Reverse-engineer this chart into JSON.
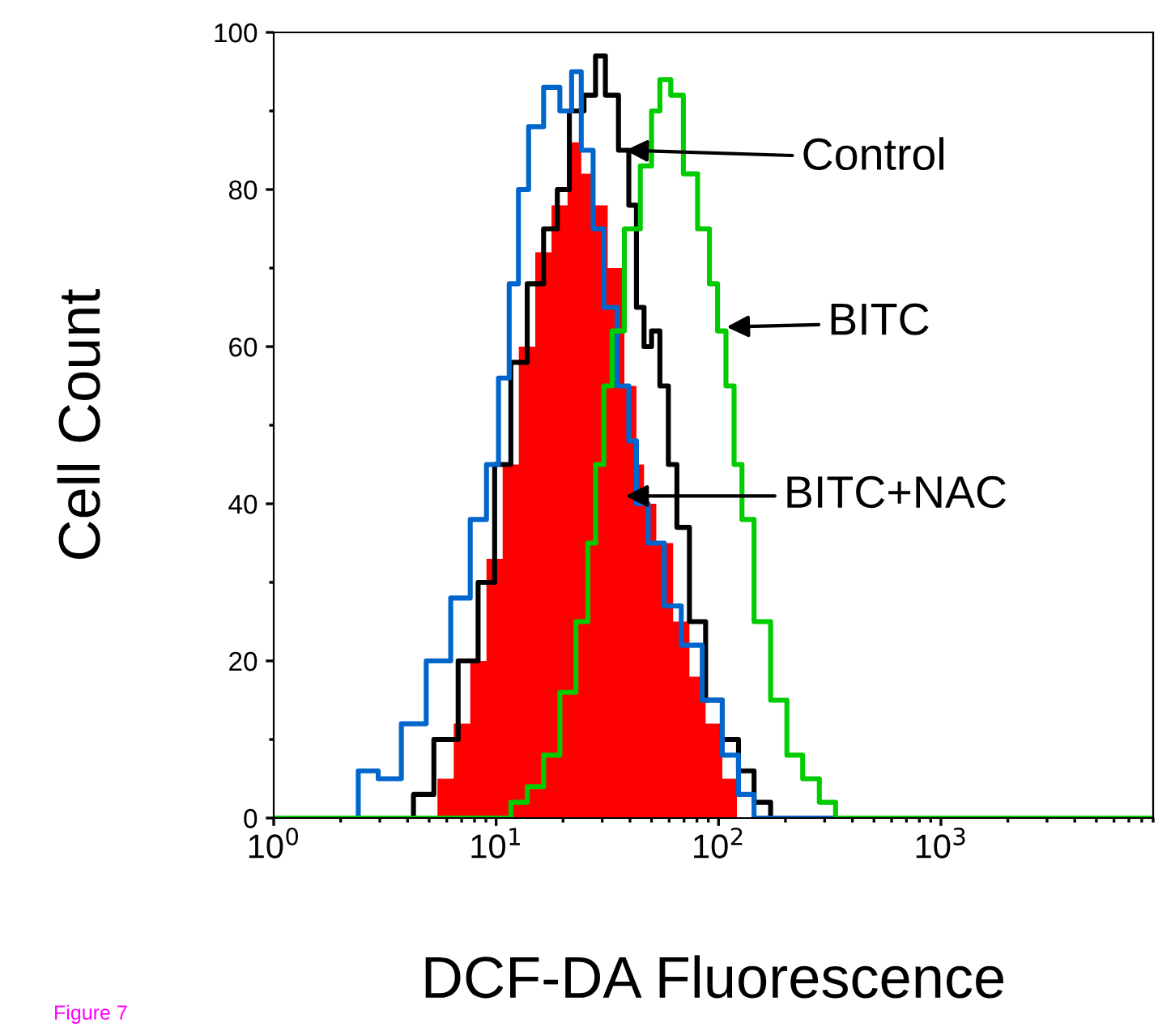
{
  "chart_data": {
    "type": "step",
    "xlabel": "DCF-DA Fluorescence",
    "ylabel": "Cell Count",
    "log": "x",
    "xlim": [
      1,
      9000
    ],
    "ylim": [
      0,
      100
    ],
    "xticks": [
      {
        "value": 1,
        "label": "10$^{0}$"
      },
      {
        "value": 10,
        "label": "10$^{1}$"
      },
      {
        "value": 100,
        "label": "10$^{2}$"
      },
      {
        "value": 1000,
        "label": "10$^{3}$"
      }
    ],
    "yticks": [
      0,
      20,
      40,
      60,
      80,
      100
    ],
    "grid": false,
    "legend": false,
    "series": [
      {
        "type": "area",
        "color": "#ff0000",
        "x": [
          1,
          5,
          5.9,
          7,
          8.3,
          9.8,
          11.6,
          13.7,
          16.3,
          19.2,
          22.7,
          25.6,
          29,
          34.5,
          41,
          44.5,
          48,
          57,
          68,
          80,
          95,
          113,
          129,
          9000
        ],
        "values": [
          0,
          0,
          5,
          12,
          20,
          33,
          45,
          60,
          72,
          78,
          86,
          82,
          78,
          70,
          55,
          45,
          40,
          35,
          25,
          18,
          12,
          5,
          0,
          0
        ]
      },
      {
        "color": "#000000",
        "x": [
          1,
          3.9,
          4.6,
          5.9,
          7.6,
          9,
          10.7,
          12.6,
          15,
          17.7,
          20,
          22.7,
          27,
          29,
          33,
          38,
          41,
          44.5,
          48,
          52,
          57,
          62,
          68,
          80,
          95,
          113,
          133,
          156,
          187,
          9000
        ],
        "values": [
          0,
          0,
          3,
          10,
          20,
          30,
          45,
          58,
          68,
          75,
          80,
          90,
          92,
          97,
          92,
          85,
          78,
          65,
          60,
          62,
          55,
          45,
          37,
          25,
          15,
          10,
          6,
          2,
          0,
          0
        ]
      },
      {
        "color": "#0066cc",
        "x": [
          1,
          2.2,
          2.6,
          3.3,
          4.2,
          5.5,
          7,
          8.3,
          9.8,
          10.7,
          12.2,
          13,
          15,
          17.7,
          21,
          22.7,
          25.6,
          29,
          32,
          38,
          41,
          44.5,
          52,
          62,
          74,
          95,
          113,
          133,
          156,
          9000
        ],
        "values": [
          0,
          0,
          6,
          5,
          12,
          20,
          28,
          38,
          45,
          56,
          68,
          80,
          88,
          93,
          90,
          95,
          85,
          75,
          65,
          55,
          48,
          40,
          35,
          27,
          22,
          15,
          8,
          3,
          0,
          0
        ]
      },
      {
        "color": "#00cc00",
        "x": [
          1,
          10.7,
          12.6,
          15,
          17.7,
          21,
          24.7,
          27,
          29,
          32,
          34.5,
          41,
          48,
          52,
          57,
          65,
          74,
          87,
          95,
          103,
          113,
          122,
          133,
          156,
          187,
          219,
          259,
          309,
          363,
          9000
        ],
        "values": [
          0,
          0,
          2,
          4,
          8,
          16,
          25,
          35,
          45,
          55,
          62,
          75,
          83,
          90,
          94,
          92,
          82,
          75,
          68,
          62,
          55,
          45,
          38,
          25,
          15,
          8,
          5,
          2,
          0,
          0
        ]
      }
    ],
    "annotations": [
      "Control",
      "BITC",
      "BITC+NAC",
      "Figure 7"
    ]
  }
}
